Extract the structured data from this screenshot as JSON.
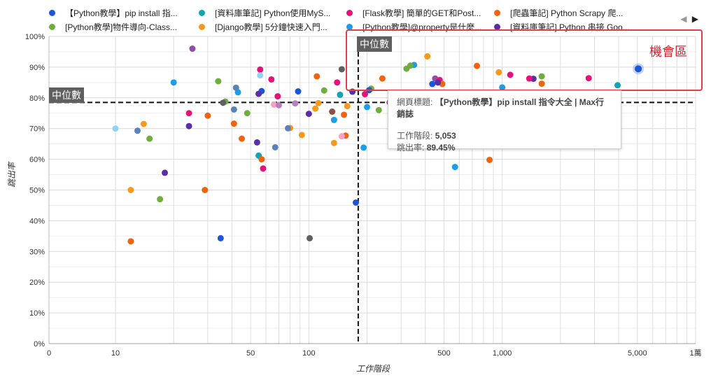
{
  "legend": {
    "items": [
      {
        "label": "【Python教學】pip install 指...",
        "color": "#1a56d6"
      },
      {
        "label": "[資料庫筆記] Python使用MyS...",
        "color": "#12a4b3"
      },
      {
        "label": "[Flask教學] 簡單的GET和Post...",
        "color": "#e6127a"
      },
      {
        "label": "[爬蟲筆記] Python Scrapy 爬...",
        "color": "#f0640f"
      },
      {
        "label": "[Python教學]物件導向-Class...",
        "color": "#6fae3c"
      },
      {
        "label": "[Django教學] 5分鐘快速入門...",
        "color": "#f59a1e"
      },
      {
        "label": "[Python教學]@property是什麼...",
        "color": "#1a9ee6"
      },
      {
        "label": "[資料庫筆記] Python 串接 Goo...",
        "color": "#5a2ea6"
      }
    ],
    "pager_prev": "◀",
    "pager_next": "▶"
  },
  "annotations": {
    "opportunity_label": "機會區",
    "median_x_label": "中位數",
    "median_y_label": "中位數"
  },
  "tooltip": {
    "title_label": "網頁標題:",
    "title_value": "【Python教學】pip install 指令大全 | Max行銷誌",
    "sessions_label": "工作階段:",
    "sessions_value": "5,053",
    "bounce_label": "跳出率:",
    "bounce_value": "89.45%"
  },
  "chart_data": {
    "type": "scatter",
    "xlabel": "工作階段",
    "ylabel": "跳出率",
    "xscale": "log",
    "xlim": [
      0,
      10000
    ],
    "ylim": [
      0,
      100
    ],
    "x_ticks": [
      {
        "value": 0,
        "label": "0"
      },
      {
        "value": 10,
        "label": "10"
      },
      {
        "value": 50,
        "label": "50"
      },
      {
        "value": 100,
        "label": "100"
      },
      {
        "value": 500,
        "label": "500"
      },
      {
        "value": 1000,
        "label": "1,000"
      },
      {
        "value": 5000,
        "label": "5,000"
      },
      {
        "value": 10000,
        "label": "1萬"
      }
    ],
    "y_ticks": [
      "0%",
      "10%",
      "20%",
      "30%",
      "40%",
      "50%",
      "60%",
      "70%",
      "80%",
      "90%",
      "100%"
    ],
    "grid": true,
    "legend_position": "top",
    "median_x": 180,
    "median_y": 78.5,
    "highlight": {
      "x": 5053,
      "y": 89.45
    },
    "points": [
      {
        "x": 5053,
        "y": 89.45,
        "c": "#1a56d6"
      },
      {
        "x": 3950,
        "y": 84.1,
        "c": "#12a4b3"
      },
      {
        "x": 2800,
        "y": 86.4,
        "c": "#e6127a"
      },
      {
        "x": 1600,
        "y": 84.6,
        "c": "#f0640f"
      },
      {
        "x": 1600,
        "y": 87.0,
        "c": "#6fae3c"
      },
      {
        "x": 1450,
        "y": 86.2,
        "c": "#5a2ea6"
      },
      {
        "x": 1380,
        "y": 86.3,
        "c": "#e6127a"
      },
      {
        "x": 1100,
        "y": 87.5,
        "c": "#e6127a"
      },
      {
        "x": 960,
        "y": 88.3,
        "c": "#f59a1e"
      },
      {
        "x": 1000,
        "y": 83.4,
        "c": "#1a9ee6"
      },
      {
        "x": 740,
        "y": 90.4,
        "c": "#f0640f"
      },
      {
        "x": 860,
        "y": 59.8,
        "c": "#f0640f"
      },
      {
        "x": 570,
        "y": 57.5,
        "c": "#1a9ee6"
      },
      {
        "x": 410,
        "y": 93.5,
        "c": "#f59a1e"
      },
      {
        "x": 350,
        "y": 90.7,
        "c": "#1a9ee6"
      },
      {
        "x": 335,
        "y": 90.5,
        "c": "#6fae3c"
      },
      {
        "x": 320,
        "y": 89.5,
        "c": "#6fae3c"
      },
      {
        "x": 435,
        "y": 84.5,
        "c": "#1a56d6"
      },
      {
        "x": 450,
        "y": 86.3,
        "c": "#8e4fa6"
      },
      {
        "x": 475,
        "y": 85.8,
        "c": "#e6127a"
      },
      {
        "x": 490,
        "y": 84.5,
        "c": "#f0640f"
      },
      {
        "x": 465,
        "y": 85.0,
        "c": "#5a2ea6"
      },
      {
        "x": 240,
        "y": 86.3,
        "c": "#f0640f"
      },
      {
        "x": 210,
        "y": 83.0,
        "c": "#6fae3c"
      },
      {
        "x": 205,
        "y": 82.5,
        "c": "#1a56d6"
      },
      {
        "x": 200,
        "y": 77.0,
        "c": "#1a9ee6"
      },
      {
        "x": 195,
        "y": 81.2,
        "c": "#e6127a"
      },
      {
        "x": 192,
        "y": 63.8,
        "c": "#1a9ee6"
      },
      {
        "x": 175,
        "y": 45.9,
        "c": "#1a56d6"
      },
      {
        "x": 230,
        "y": 76.0,
        "c": "#6fae3c"
      },
      {
        "x": 262,
        "y": 78.5,
        "c": "#e6127a"
      },
      {
        "x": 168,
        "y": 82.0,
        "c": "#5a2ea6"
      },
      {
        "x": 158,
        "y": 77.3,
        "c": "#f59a1e"
      },
      {
        "x": 152,
        "y": 74.5,
        "c": "#f0640f"
      },
      {
        "x": 145,
        "y": 81.0,
        "c": "#12a4b3"
      },
      {
        "x": 140,
        "y": 85.0,
        "c": "#e6127a"
      },
      {
        "x": 148,
        "y": 89.3,
        "c": "#5f5f5f"
      },
      {
        "x": 155,
        "y": 67.7,
        "c": "#f0640f"
      },
      {
        "x": 148,
        "y": 67.5,
        "c": "#f7a1c4"
      },
      {
        "x": 135,
        "y": 72.8,
        "c": "#1a9ee6"
      },
      {
        "x": 135,
        "y": 65.3,
        "c": "#f59a1e"
      },
      {
        "x": 132,
        "y": 75.5,
        "c": "#8e4f45"
      },
      {
        "x": 120,
        "y": 82.4,
        "c": "#6fae3c"
      },
      {
        "x": 110,
        "y": 87.0,
        "c": "#f0640f"
      },
      {
        "x": 112,
        "y": 78.3,
        "c": "#f59a1e"
      },
      {
        "x": 108,
        "y": 76.5,
        "c": "#f59a1e"
      },
      {
        "x": 100,
        "y": 74.8,
        "c": "#5a2ea6"
      },
      {
        "x": 101,
        "y": 34.3,
        "c": "#5f5f5f"
      },
      {
        "x": 88,
        "y": 82.1,
        "c": "#1a56d6"
      },
      {
        "x": 85,
        "y": 78.2,
        "c": "#b67fc0"
      },
      {
        "x": 92,
        "y": 67.9,
        "c": "#f59a1e"
      },
      {
        "x": 80,
        "y": 70.2,
        "c": "#f59a1e"
      },
      {
        "x": 78,
        "y": 70.1,
        "c": "#5b82b8"
      },
      {
        "x": 69,
        "y": 80.5,
        "c": "#e6127a"
      },
      {
        "x": 66,
        "y": 77.8,
        "c": "#f7a1c4"
      },
      {
        "x": 70,
        "y": 77.6,
        "c": "#b67fc0"
      },
      {
        "x": 64,
        "y": 86.0,
        "c": "#e6127a"
      },
      {
        "x": 67,
        "y": 63.9,
        "c": "#5b82b8"
      },
      {
        "x": 57,
        "y": 82.2,
        "c": "#1a56d6"
      },
      {
        "x": 55,
        "y": 81.3,
        "c": "#5a2ea6"
      },
      {
        "x": 56,
        "y": 89.2,
        "c": "#e6127a"
      },
      {
        "x": 56,
        "y": 87.3,
        "c": "#8fd3f5"
      },
      {
        "x": 54,
        "y": 65.5,
        "c": "#5a2ea6"
      },
      {
        "x": 55,
        "y": 61.2,
        "c": "#12a4b3"
      },
      {
        "x": 57,
        "y": 60.0,
        "c": "#f0640f"
      },
      {
        "x": 58,
        "y": 57.0,
        "c": "#e6127a"
      },
      {
        "x": 48,
        "y": 75.0,
        "c": "#6fae3c"
      },
      {
        "x": 45,
        "y": 66.7,
        "c": "#f0640f"
      },
      {
        "x": 43,
        "y": 81.8,
        "c": "#1a9ee6"
      },
      {
        "x": 42,
        "y": 83.3,
        "c": "#5b82b8"
      },
      {
        "x": 41,
        "y": 76.2,
        "c": "#5b82b8"
      },
      {
        "x": 41,
        "y": 71.6,
        "c": "#f0640f"
      },
      {
        "x": 37,
        "y": 78.8,
        "c": "#6fae3c"
      },
      {
        "x": 36,
        "y": 78.4,
        "c": "#5f5f5f"
      },
      {
        "x": 34,
        "y": 85.4,
        "c": "#6fae3c"
      },
      {
        "x": 35,
        "y": 34.3,
        "c": "#1a56d6"
      },
      {
        "x": 30,
        "y": 74.2,
        "c": "#f0640f"
      },
      {
        "x": 29,
        "y": 50.0,
        "c": "#f0640f"
      },
      {
        "x": 24,
        "y": 75.0,
        "c": "#e6127a"
      },
      {
        "x": 24,
        "y": 70.8,
        "c": "#5a2ea6"
      },
      {
        "x": 25,
        "y": 96.0,
        "c": "#8e4fa6"
      },
      {
        "x": 20,
        "y": 85.0,
        "c": "#1a9ee6"
      },
      {
        "x": 18,
        "y": 55.6,
        "c": "#5a2ea6"
      },
      {
        "x": 17,
        "y": 47.0,
        "c": "#6fae3c"
      },
      {
        "x": 15,
        "y": 66.7,
        "c": "#6fae3c"
      },
      {
        "x": 14,
        "y": 71.5,
        "c": "#f59a1e"
      },
      {
        "x": 13,
        "y": 69.3,
        "c": "#5b82b8"
      },
      {
        "x": 12,
        "y": 50.0,
        "c": "#f59a1e"
      },
      {
        "x": 12,
        "y": 33.3,
        "c": "#f0640f"
      },
      {
        "x": 10,
        "y": 70.0,
        "c": "#8fd3f5"
      }
    ]
  }
}
